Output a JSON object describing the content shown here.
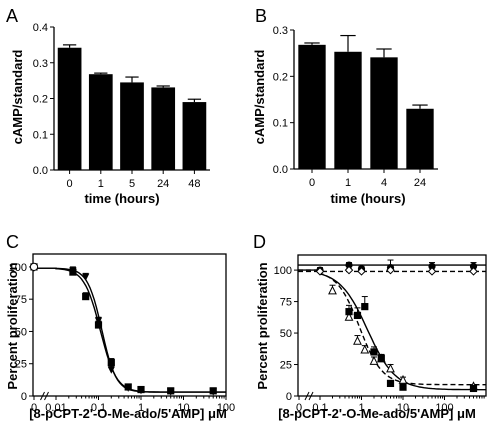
{
  "chart_data": [
    {
      "panel": "A",
      "type": "bar",
      "ylabel": "cAMP/standard",
      "xlabel": "time (hours)",
      "categories": [
        "0",
        "1",
        "5",
        "24",
        "48"
      ],
      "values": [
        0.342,
        0.268,
        0.245,
        0.231,
        0.19
      ],
      "errors": [
        0.008,
        0.003,
        0.015,
        0.004,
        0.008
      ],
      "ylim": [
        0,
        0.4
      ],
      "yticks": [
        "0.0",
        "0.1",
        "0.2",
        "0.3",
        "0.4"
      ],
      "bar_color": "#000000"
    },
    {
      "panel": "B",
      "type": "bar",
      "ylabel": "cAMP/standard",
      "xlabel": "time (hours)",
      "categories": [
        "0",
        "1",
        "4",
        "24"
      ],
      "values": [
        0.268,
        0.253,
        0.241,
        0.13
      ],
      "errors": [
        0.004,
        0.035,
        0.018,
        0.008
      ],
      "ylim": [
        0,
        0.3
      ],
      "yticks": [
        "0.0",
        "0.1",
        "0.2",
        "0.3"
      ],
      "bar_color": "#000000"
    },
    {
      "panel": "C",
      "type": "scatter",
      "xscale": "log",
      "ylabel": "Percent proliferation",
      "xlabel": "[8-pCPT-2'-O-Me-ado/5'AMP] μM",
      "xticks": [
        "0",
        "0.01",
        "0.1",
        "1",
        "10",
        "100"
      ],
      "yticks": [
        "0",
        "25",
        "50",
        "75",
        "100"
      ],
      "ylim": [
        0,
        110
      ],
      "series": [
        {
          "marker": "square-filled",
          "x": [
            0.025,
            0.05,
            0.1,
            0.2,
            0.5,
            1,
            5,
            50
          ],
          "y": [
            96,
            77,
            55,
            26,
            7,
            5,
            4,
            4
          ],
          "errors": [
            3,
            3,
            3,
            3,
            1,
            1,
            1,
            1
          ]
        },
        {
          "marker": "triangle-down-filled",
          "x": [
            0.025,
            0.05,
            0.1,
            0.2,
            0.5,
            1,
            5,
            50
          ],
          "y": [
            97,
            92,
            58,
            20,
            6,
            4,
            3,
            3
          ],
          "errors": [
            3,
            3,
            3,
            3,
            1,
            1,
            1,
            1
          ]
        }
      ],
      "baseline_points": [
        {
          "marker": "square-filled",
          "y": 100
        },
        {
          "marker": "triangle-down-filled",
          "y": 99
        },
        {
          "marker": "circle-open",
          "y": 100
        }
      ],
      "fits": [
        {
          "style": "solid",
          "top": 99,
          "bottom": 3,
          "ec50": 0.11,
          "hill": 2.3
        },
        {
          "style": "solid",
          "top": 99,
          "bottom": 3,
          "ec50": 0.12,
          "hill": 2.6
        }
      ]
    },
    {
      "panel": "D",
      "type": "scatter",
      "xscale": "log",
      "ylabel": "Percent proliferation",
      "xlabel": "[8-pCPT-2'-O-Me-ado/5'AMP] μM",
      "xticks": [
        "0",
        "0.1",
        "1",
        "10",
        "100"
      ],
      "yticks": [
        "0",
        "25",
        "50",
        "75",
        "100"
      ],
      "ylim": [
        0,
        112
      ],
      "series": [
        {
          "marker": "circle-filled",
          "x": [
            0.1,
            0.5,
            1,
            5,
            50,
            500
          ],
          "y": [
            100,
            104,
            101,
            102,
            103,
            103
          ],
          "errors": [
            2,
            2,
            2,
            6,
            3,
            3
          ]
        },
        {
          "marker": "diamond-open",
          "x": [
            0.1,
            0.5,
            1,
            5,
            50,
            500
          ],
          "y": [
            99,
            100,
            99,
            100,
            99,
            99
          ],
          "errors": [
            1,
            1,
            1,
            1,
            1,
            1
          ]
        },
        {
          "marker": "triangle-open",
          "x": [
            0.2,
            0.5,
            0.8,
            1.2,
            2,
            3,
            5,
            10,
            500
          ],
          "y": [
            84,
            63,
            44,
            37,
            28,
            30,
            22,
            13,
            8
          ],
          "errors": [
            4,
            4,
            4,
            3,
            3,
            3,
            3,
            2,
            1
          ]
        },
        {
          "marker": "square-filled",
          "x": [
            0.5,
            0.8,
            1.2,
            2,
            3,
            5,
            10,
            500
          ],
          "y": [
            67,
            64,
            71,
            35,
            30,
            10,
            7,
            6
          ],
          "errors": [
            5,
            6,
            8,
            4,
            3,
            2,
            2,
            1
          ]
        }
      ],
      "fits": [
        {
          "style": "solid",
          "flat": 104
        },
        {
          "style": "dashed",
          "flat": 99
        },
        {
          "style": "solid",
          "top": 100,
          "bottom": 5,
          "ec50": 1.4,
          "hill": 1.3
        },
        {
          "style": "dashed",
          "top": 100,
          "bottom": 9,
          "ec50": 0.9,
          "hill": 1.6
        }
      ]
    }
  ]
}
